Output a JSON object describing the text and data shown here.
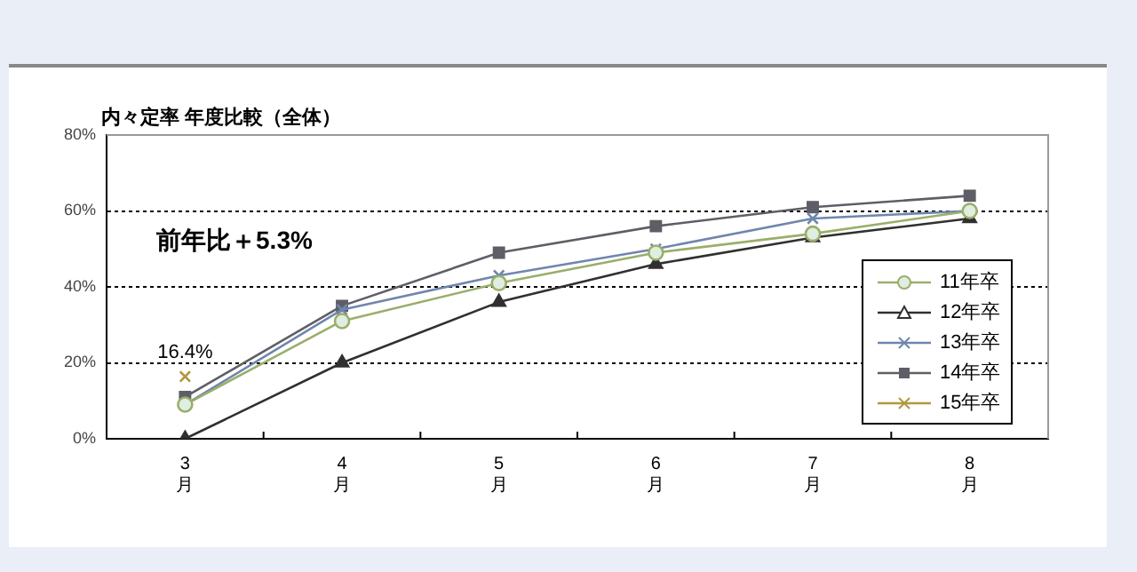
{
  "chart_data": {
    "type": "line",
    "title": "内々定率 年度比較（全体）",
    "categories": [
      "3月",
      "4月",
      "5月",
      "6月",
      "7月",
      "8月"
    ],
    "series": [
      {
        "name": "11年卒",
        "color": "#9aae6a",
        "marker": "circle",
        "values": [
          9,
          31,
          41,
          49,
          54,
          60
        ]
      },
      {
        "name": "12年卒",
        "color": "#303030",
        "marker": "triangle",
        "values": [
          0,
          20,
          36,
          46,
          53,
          58
        ]
      },
      {
        "name": "13年卒",
        "color": "#6f86ad",
        "marker": "cross",
        "values": [
          9,
          34,
          43,
          50,
          58,
          60
        ]
      },
      {
        "name": "14年卒",
        "color": "#5e5e66",
        "marker": "square",
        "values": [
          11,
          35,
          49,
          56,
          61,
          64
        ]
      },
      {
        "name": "15年卒",
        "color": "#b0983e",
        "marker": "cross",
        "values": [
          16.4,
          null,
          null,
          null,
          null,
          null
        ]
      }
    ],
    "ylim": [
      0,
      80
    ],
    "yticks": [
      {
        "value": 0,
        "label": "0%"
      },
      {
        "value": 20,
        "label": "20%"
      },
      {
        "value": 40,
        "label": "40%"
      },
      {
        "value": 60,
        "label": "60%"
      },
      {
        "value": 80,
        "label": "80%"
      }
    ],
    "grid": "y",
    "legend": "bottom right",
    "line_style": "solid",
    "annotations": [
      "前年比＋5.3%",
      {
        "text": "16.4%",
        "x": "3月",
        "y": 16.4
      }
    ]
  }
}
